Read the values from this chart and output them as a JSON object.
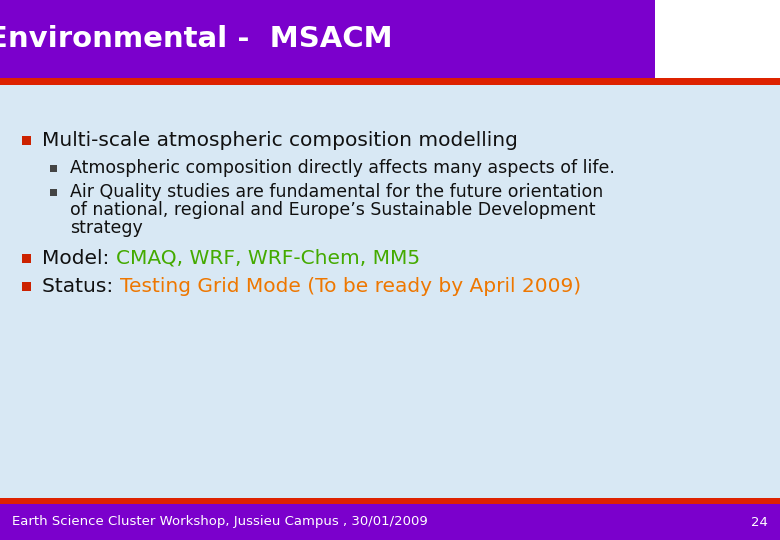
{
  "title": "Environmental -  MSACM",
  "title_bg_color": "#7B00CC",
  "title_text_color": "#FFFFFF",
  "accent_color_red": "#DD2200",
  "body_bg_color": "#D8E8F4",
  "footer_bg_color": "#7B00CC",
  "footer_text": "Earth Science Cluster Workshop, Jussieu Campus , 30/01/2009",
  "footer_number": "24",
  "footer_text_color": "#FFFFFF",
  "bullet1": "Multi-scale atmospheric composition modelling",
  "bullet1_color": "#111111",
  "sub_bullet1": "Atmospheric composition directly affects many aspects of life.",
  "sub_bullet2_line1": "Air Quality studies are fundamental for the future orientation",
  "sub_bullet2_line2": "of national, regional and Europe’s Sustainable Development",
  "sub_bullet2_line3": "strategy",
  "sub_bullet_color": "#111111",
  "bullet2_prefix": "Model: ",
  "bullet2_colored": "CMAQ, WRF, WRF-Chem, MM5",
  "bullet2_color": "#44AA00",
  "bullet3_prefix": "Status: ",
  "bullet3_colored": "Testing Grid Mode (To be ready by April 2009)",
  "bullet3_color": "#EE7700",
  "bullet_marker_color": "#CC2200",
  "sub_bullet_marker_color": "#444444",
  "title_fontsize": 21,
  "body_fontsize": 14.5,
  "sub_body_fontsize": 12.5,
  "footer_fontsize": 9.5
}
